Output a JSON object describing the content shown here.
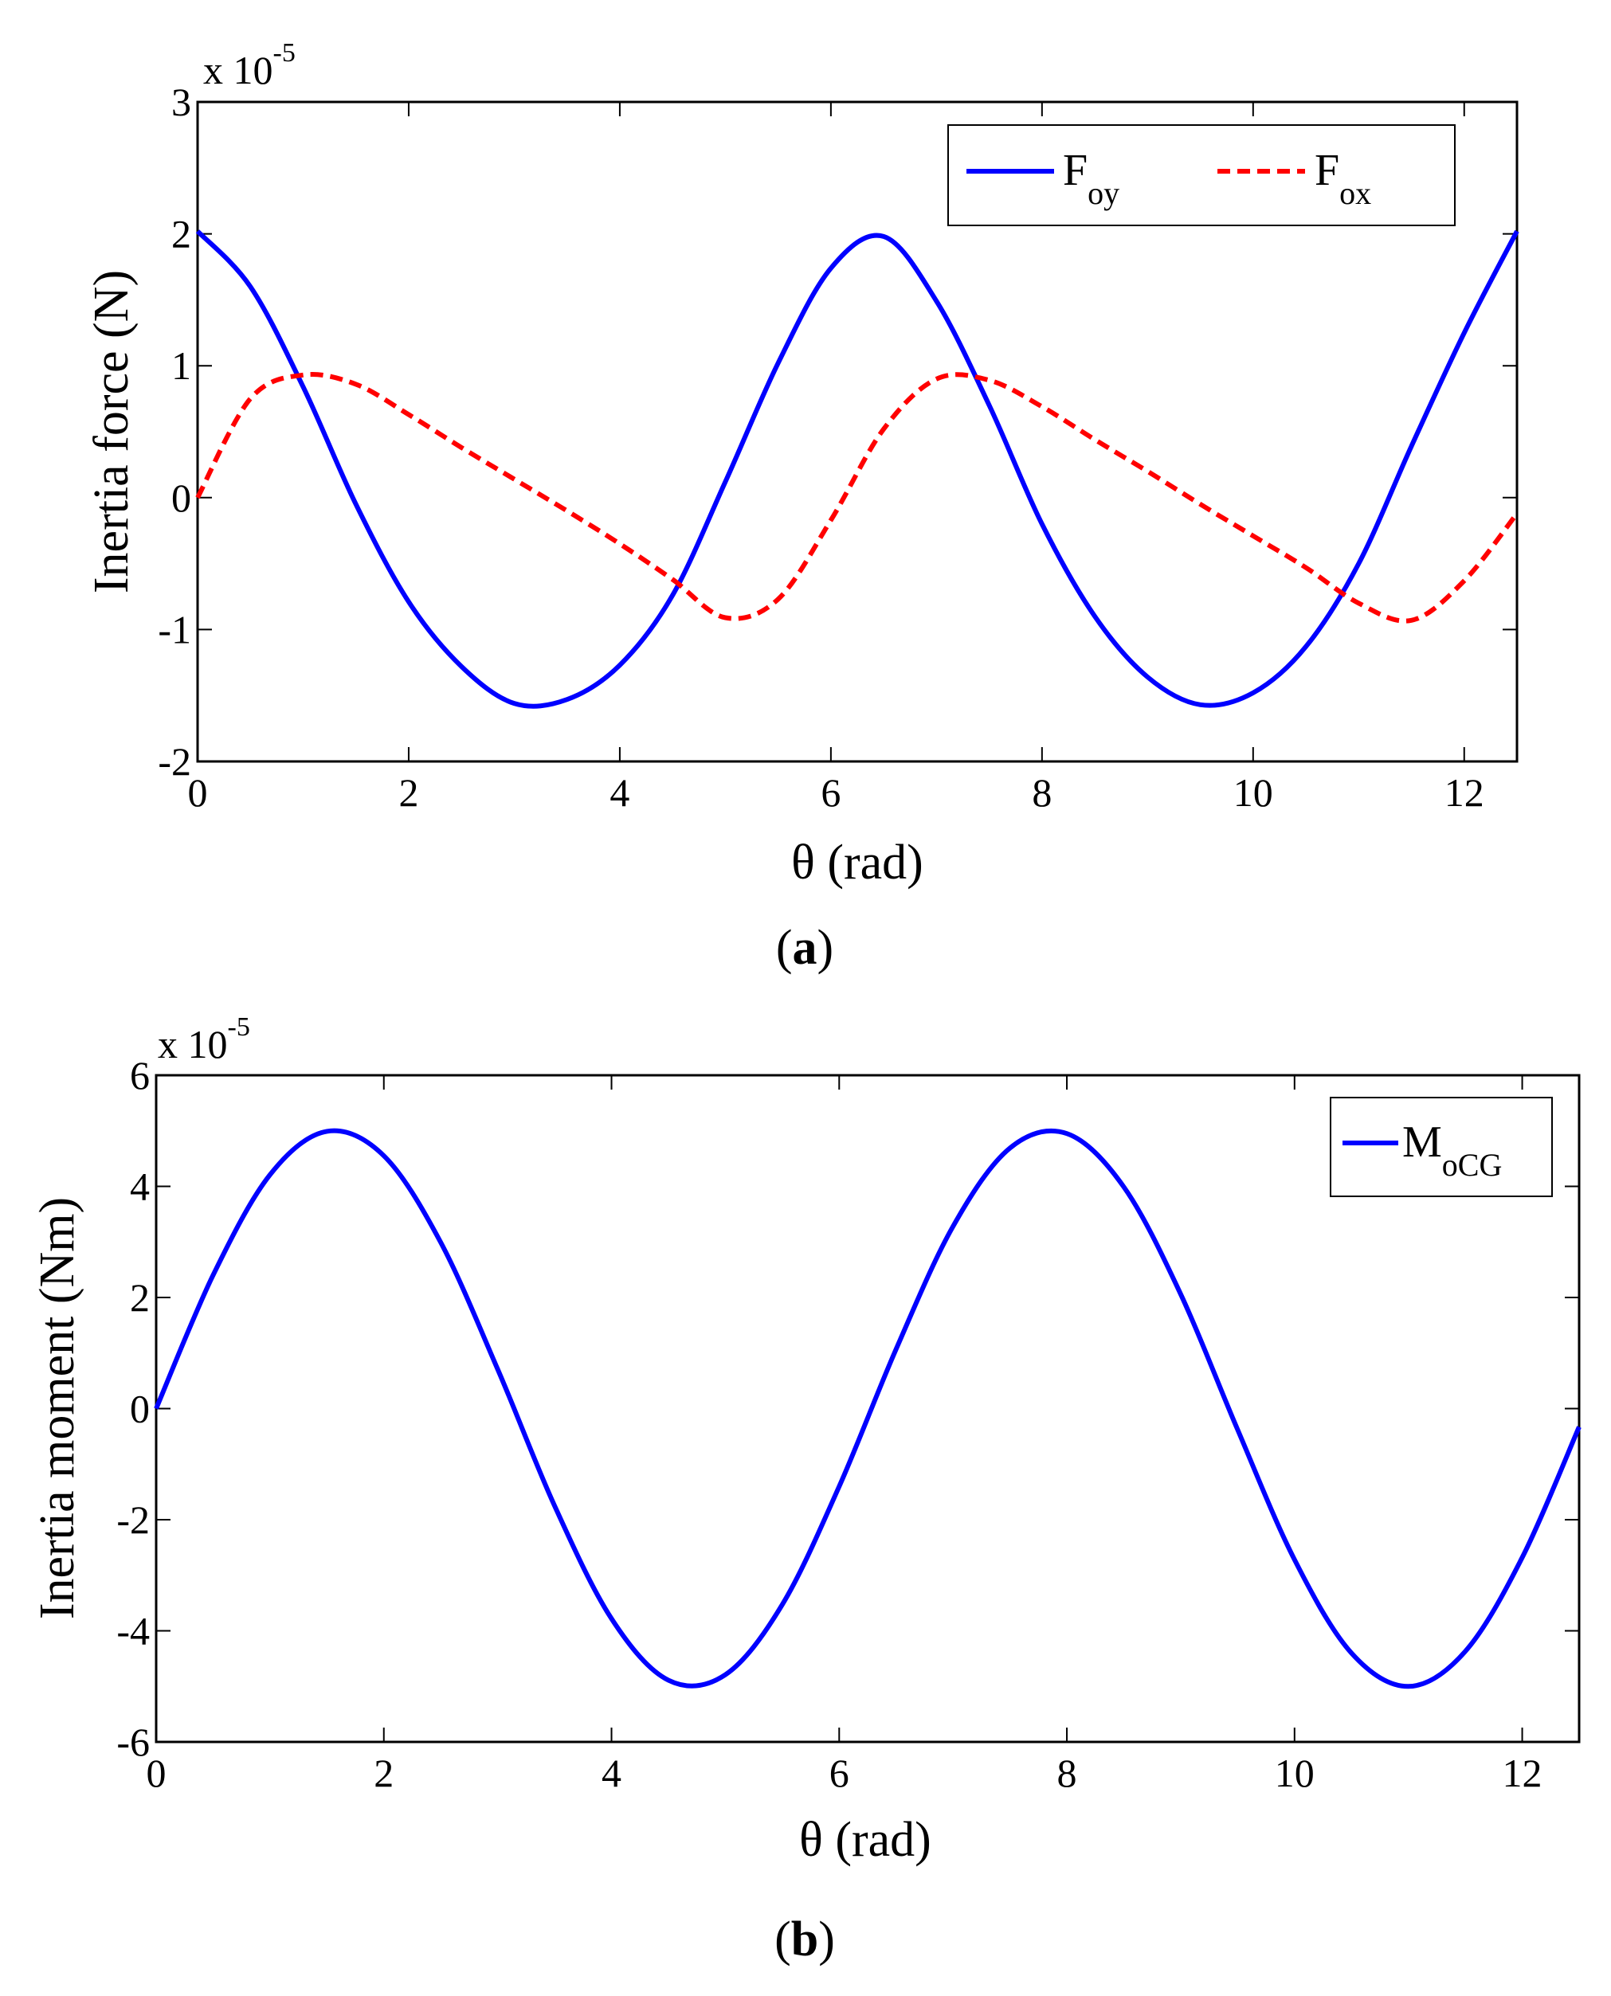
{
  "chart_data": [
    {
      "id": "a",
      "type": "line",
      "caption_letter": "a",
      "xlabel": "θ (rad)",
      "ylabel": "Inertia force (N)",
      "xlim": [
        0,
        12.5
      ],
      "ylim": [
        -2,
        3
      ],
      "x_ticks": [
        0,
        2,
        4,
        6,
        8,
        10,
        12
      ],
      "y_ticks": [
        -2,
        -1,
        0,
        1,
        2,
        3
      ],
      "y_multiplier": {
        "base": "x 10",
        "exponent": "-5"
      },
      "grid": false,
      "legend_position": "top-right",
      "x": [
        0,
        0.5,
        1,
        1.5,
        2,
        2.5,
        3,
        3.5,
        4,
        4.5,
        5,
        5.5,
        6,
        6.5,
        7,
        7.5,
        8,
        8.5,
        9,
        9.5,
        10,
        10.5,
        11,
        11.5,
        12,
        12.5
      ],
      "series": [
        {
          "name": "F",
          "subscript": "oy",
          "color": "#0000ff",
          "dash": "solid",
          "values": [
            2.02,
            1.6,
            0.84,
            -0.05,
            -0.79,
            -1.28,
            -1.56,
            -1.53,
            -1.27,
            -0.74,
            0.12,
            1.02,
            1.74,
            1.98,
            1.49,
            0.7,
            -0.2,
            -0.9,
            -1.36,
            -1.57,
            -1.48,
            -1.13,
            -0.5,
            0.39,
            1.25,
            2.02
          ]
        },
        {
          "name": "F",
          "subscript": "ox",
          "color": "#ff0000",
          "dash": "dashed",
          "values": [
            0.0,
            0.75,
            0.93,
            0.86,
            0.63,
            0.38,
            0.14,
            -0.1,
            -0.35,
            -0.62,
            -0.91,
            -0.77,
            -0.17,
            0.52,
            0.9,
            0.89,
            0.69,
            0.44,
            0.2,
            -0.05,
            -0.29,
            -0.53,
            -0.8,
            -0.93,
            -0.63,
            -0.12
          ]
        }
      ]
    },
    {
      "id": "b",
      "type": "line",
      "caption_letter": "b",
      "xlabel": "θ (rad)",
      "ylabel": "Inertia moment (Nm)",
      "xlim": [
        0,
        12.5
      ],
      "ylim": [
        -6,
        6
      ],
      "x_ticks": [
        0,
        2,
        4,
        6,
        8,
        10,
        12
      ],
      "y_ticks": [
        -6,
        -4,
        -2,
        0,
        2,
        4,
        6
      ],
      "y_multiplier": {
        "base": "x 10",
        "exponent": "-5"
      },
      "grid": false,
      "legend_position": "top-right",
      "x": [
        0,
        0.5,
        1,
        1.5,
        2,
        2.5,
        3,
        3.5,
        4,
        4.5,
        5,
        5.5,
        6,
        6.5,
        7,
        7.5,
        8,
        8.5,
        9,
        9.5,
        10,
        10.5,
        11,
        11.5,
        12,
        12.5
      ],
      "series": [
        {
          "name": "M",
          "subscript": "oCG",
          "color": "#0000ff",
          "dash": "solid",
          "values": [
            0.0,
            2.4,
            4.21,
            4.99,
            4.55,
            2.99,
            0.71,
            -1.75,
            -3.78,
            -4.89,
            -4.79,
            -3.53,
            -1.4,
            1.07,
            3.28,
            4.69,
            4.95,
            3.99,
            2.06,
            -0.38,
            -2.72,
            -4.4,
            -5.0,
            -4.37,
            -2.68,
            -0.33
          ]
        }
      ]
    }
  ]
}
